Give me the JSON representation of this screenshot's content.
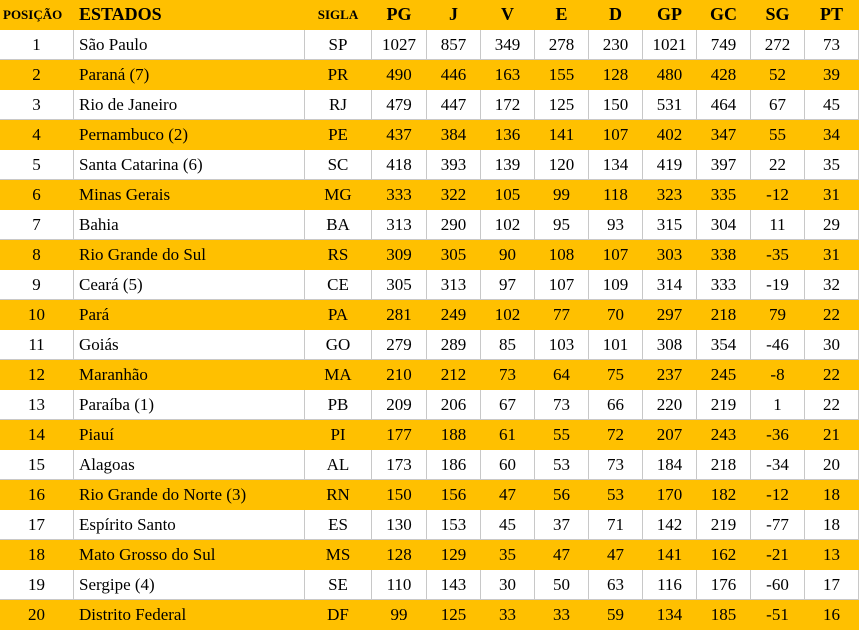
{
  "table": {
    "header": [
      "POSIÇÃO",
      "ESTADOS",
      "SIGLA",
      "PG",
      "J",
      "V",
      "E",
      "D",
      "GP",
      "GC",
      "SG",
      "PT"
    ],
    "rows": [
      [
        1,
        "São Paulo",
        "SP",
        1027,
        857,
        349,
        278,
        230,
        1021,
        749,
        272,
        73
      ],
      [
        2,
        "Paraná (7)",
        "PR",
        490,
        446,
        163,
        155,
        128,
        480,
        428,
        52,
        39
      ],
      [
        3,
        "Rio de Janeiro",
        "RJ",
        479,
        447,
        172,
        125,
        150,
        531,
        464,
        67,
        45
      ],
      [
        4,
        "Pernambuco (2)",
        "PE",
        437,
        384,
        136,
        141,
        107,
        402,
        347,
        55,
        34
      ],
      [
        5,
        "Santa Catarina (6)",
        "SC",
        418,
        393,
        139,
        120,
        134,
        419,
        397,
        22,
        35
      ],
      [
        6,
        "Minas Gerais",
        "MG",
        333,
        322,
        105,
        99,
        118,
        323,
        335,
        -12,
        31
      ],
      [
        7,
        "Bahia",
        "BA",
        313,
        290,
        102,
        95,
        93,
        315,
        304,
        11,
        29
      ],
      [
        8,
        "Rio Grande do Sul",
        "RS",
        309,
        305,
        90,
        108,
        107,
        303,
        338,
        -35,
        31
      ],
      [
        9,
        "Ceará (5)",
        "CE",
        305,
        313,
        97,
        107,
        109,
        314,
        333,
        -19,
        32
      ],
      [
        10,
        "Pará",
        "PA",
        281,
        249,
        102,
        77,
        70,
        297,
        218,
        79,
        22
      ],
      [
        11,
        "Goiás",
        "GO",
        279,
        289,
        85,
        103,
        101,
        308,
        354,
        -46,
        30
      ],
      [
        12,
        "Maranhão",
        "MA",
        210,
        212,
        73,
        64,
        75,
        237,
        245,
        -8,
        22
      ],
      [
        13,
        "Paraíba (1)",
        "PB",
        209,
        206,
        67,
        73,
        66,
        220,
        219,
        1,
        22
      ],
      [
        14,
        "Piauí",
        "PI",
        177,
        188,
        61,
        55,
        72,
        207,
        243,
        -36,
        21
      ],
      [
        15,
        "Alagoas",
        "AL",
        173,
        186,
        60,
        53,
        73,
        184,
        218,
        -34,
        20
      ],
      [
        16,
        "Rio Grande do Norte (3)",
        "RN",
        150,
        156,
        47,
        56,
        53,
        170,
        182,
        -12,
        18
      ],
      [
        17,
        "Espírito Santo",
        "ES",
        130,
        153,
        45,
        37,
        71,
        142,
        219,
        -77,
        18
      ],
      [
        18,
        "Mato Grosso do Sul",
        "MS",
        128,
        129,
        35,
        47,
        47,
        141,
        162,
        -21,
        13
      ],
      [
        19,
        "Sergipe (4)",
        "SE",
        110,
        143,
        30,
        50,
        63,
        116,
        176,
        -60,
        17
      ],
      [
        20,
        "Distrito Federal",
        "DF",
        99,
        125,
        33,
        33,
        59,
        134,
        185,
        -51,
        16
      ]
    ]
  }
}
